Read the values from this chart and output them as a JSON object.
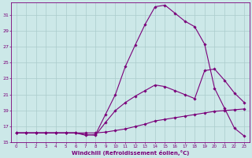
{
  "xlabel": "Windchill (Refroidissement éolien,°C)",
  "bg_color": "#cce8e8",
  "grid_color": "#aacccc",
  "line_color": "#7a007a",
  "xlim": [
    -0.5,
    23.5
  ],
  "ylim": [
    15,
    32.5
  ],
  "xticks": [
    0,
    1,
    2,
    3,
    4,
    5,
    6,
    7,
    8,
    9,
    10,
    11,
    12,
    13,
    14,
    15,
    16,
    17,
    18,
    19,
    20,
    21,
    22,
    23
  ],
  "yticks": [
    15,
    17,
    19,
    21,
    23,
    25,
    27,
    29,
    31
  ],
  "line1_x": [
    0,
    1,
    2,
    3,
    4,
    5,
    6,
    7,
    8,
    9,
    10,
    11,
    12,
    13,
    14,
    15,
    16,
    17,
    18,
    19,
    20,
    21,
    22,
    23
  ],
  "line1_y": [
    16.2,
    16.2,
    16.2,
    16.2,
    16.2,
    16.2,
    16.2,
    16.2,
    16.2,
    16.3,
    16.5,
    16.7,
    17.0,
    17.3,
    17.7,
    17.9,
    18.1,
    18.3,
    18.5,
    18.7,
    18.9,
    19.0,
    19.1,
    19.2
  ],
  "line2_x": [
    0,
    1,
    2,
    3,
    4,
    5,
    6,
    7,
    8,
    9,
    10,
    11,
    12,
    13,
    14,
    15,
    16,
    17,
    18,
    19,
    20,
    21,
    22,
    23
  ],
  "line2_y": [
    16.2,
    16.2,
    16.2,
    16.2,
    16.2,
    16.2,
    16.2,
    16.0,
    15.9,
    17.5,
    19.0,
    20.0,
    20.8,
    21.5,
    22.2,
    22.0,
    21.5,
    21.0,
    20.5,
    24.0,
    24.2,
    22.8,
    21.2,
    20.0
  ],
  "line3_x": [
    0,
    1,
    2,
    3,
    4,
    5,
    6,
    7,
    8,
    9,
    10,
    11,
    12,
    13,
    14,
    15,
    16,
    17,
    18,
    19,
    20,
    21,
    22,
    23
  ],
  "line3_y": [
    16.2,
    16.2,
    16.2,
    16.2,
    16.2,
    16.2,
    16.2,
    15.9,
    16.0,
    18.5,
    21.0,
    24.5,
    27.2,
    29.8,
    32.0,
    32.2,
    31.2,
    30.2,
    29.5,
    27.3,
    21.8,
    19.3,
    16.8,
    15.8
  ]
}
